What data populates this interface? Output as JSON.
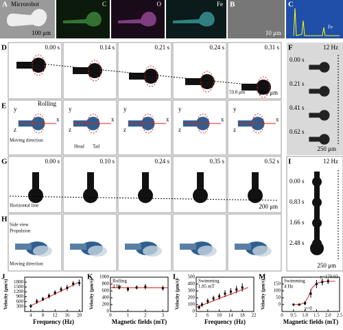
{
  "top": {
    "A": {
      "letter": "A",
      "caption": "Microrobot",
      "scale": "100 μm"
    },
    "maps": [
      "C",
      "O",
      "Fe"
    ],
    "B": {
      "letter": "B",
      "scale": "10 μm"
    },
    "C": {
      "letter": "C",
      "peak": "Fe"
    }
  },
  "D": {
    "letter": "D",
    "freq": "4 Hz",
    "times": [
      "0.00 s",
      "0.14 s",
      "0.21 s",
      "0.24 s",
      "0.31 s"
    ],
    "measure": "59.8 μm",
    "scale": "200 μm"
  },
  "E": {
    "letter": "E",
    "axes": [
      "x",
      "y",
      "z"
    ],
    "mode": "Rolling",
    "moving": "Moving direction",
    "head": "Head",
    "tail": "Tail"
  },
  "F": {
    "letter": "F",
    "freq": "12 Hz",
    "times": [
      "0.00 s",
      "0.21 s",
      "0.41 s",
      "0.62 s"
    ],
    "scale": "250 μm"
  },
  "G": {
    "letter": "G",
    "freq": "4 Hz",
    "times": [
      "0.00 s",
      "0.10 s",
      "0.24 s",
      "0.35 s",
      "0.52 s"
    ],
    "note": "Horizontal line",
    "scale": "200 μm"
  },
  "H": {
    "letter": "H",
    "view": "Side view",
    "mode": "Propulsion",
    "moving": "Moving direction"
  },
  "I": {
    "letter": "I",
    "freq": "12 Hz",
    "times": [
      "0.00 s",
      "0.83 s",
      "1.66 s",
      "2.48 s"
    ],
    "scale": "250 μm"
  },
  "chart_data": [
    {
      "type": "scatter",
      "letter": "J",
      "xlabel": "Frequency (Hz)",
      "ylabel": "Velocity (μm/s)",
      "x": [
        4,
        6,
        8,
        10,
        12,
        14,
        16,
        18,
        20
      ],
      "values": [
        330,
        620,
        760,
        950,
        1150,
        1350,
        1450,
        1700,
        1750
      ],
      "errors": [
        120,
        150,
        130,
        160,
        150,
        170,
        180,
        160,
        200
      ],
      "color": "#000000",
      "fit": {
        "x": [
          4,
          20
        ],
        "y": [
          350,
          1800
        ],
        "color": "#e02020"
      },
      "xlim": [
        2,
        21
      ],
      "xticks": [
        4,
        8,
        12,
        16,
        20
      ],
      "ylim": [
        0,
        2100
      ],
      "yticks": [
        300,
        600,
        900,
        1200,
        1500,
        1800
      ]
    },
    {
      "type": "scatter",
      "letter": "K",
      "xlabel": "Magnetic fields (mT)",
      "ylabel": "Velocity (μm/s)",
      "annotations": [
        "Rolling",
        "4 Hz"
      ],
      "x": [
        0.5,
        1,
        1.5,
        2,
        3
      ],
      "values": [
        700,
        650,
        700,
        720,
        680
      ],
      "errors": [
        60,
        70,
        60,
        80,
        70
      ],
      "color": "#000000",
      "fit": {
        "x": [
          0,
          3.3
        ],
        "y": [
          690,
          690
        ],
        "color": "#e02020"
      },
      "xlim": [
        0,
        3.3
      ],
      "xticks": [
        0,
        1,
        2,
        3
      ],
      "ylim": [
        0,
        1000
      ],
      "yticks": [
        0,
        200,
        400,
        600,
        800,
        1000
      ]
    },
    {
      "type": "scatter",
      "letter": "L",
      "xlabel": "Frequency (Hz)",
      "ylabel": "Velocity (μm/s)",
      "annotations": [
        "Swimming",
        "1.85 mT"
      ],
      "x": [
        3,
        4,
        6,
        8,
        10,
        12,
        14,
        16,
        18
      ],
      "values": [
        60,
        100,
        150,
        190,
        220,
        260,
        290,
        320,
        350
      ],
      "errors": [
        30,
        35,
        40,
        40,
        45,
        50,
        50,
        55,
        60
      ],
      "color": "#000000",
      "fit": {
        "x": [
          2,
          20
        ],
        "y": [
          60,
          350
        ],
        "color": "#e02020"
      },
      "xlim": [
        2,
        22
      ],
      "xticks": [
        2,
        6,
        10,
        14,
        18,
        22
      ],
      "ylim": [
        0,
        500
      ],
      "yticks": [
        0,
        100,
        200,
        300,
        400,
        500
      ]
    },
    {
      "type": "scatter",
      "letter": "M",
      "xlabel": "Magnetic fields (mT)",
      "ylabel": "Velocity (μm/s)",
      "annotations": [
        "Swimming",
        "4 Hz"
      ],
      "fit_labels": [
        "y=170.03",
        "y=0"
      ],
      "x": [
        0.5,
        0.75,
        1.0,
        1.25,
        1.5,
        1.75,
        2.0
      ],
      "values": [
        0,
        0,
        10,
        80,
        150,
        165,
        170
      ],
      "errors": [
        5,
        8,
        15,
        30,
        30,
        25,
        20
      ],
      "color": "#000000",
      "fit": {
        "x": [
          0.5,
          0.8,
          1.0,
          1.15,
          1.3,
          1.5,
          1.75,
          2.0,
          2.3
        ],
        "y": [
          0,
          2,
          15,
          60,
          120,
          155,
          167,
          170,
          170
        ],
        "color": "#e02020"
      },
      "xlim": [
        0,
        2.5
      ],
      "xticks": [
        0,
        0.5,
        {
          "value": 1,
          "label": "1.0"
        },
        1.5,
        {
          "value": 2,
          "label": "2.0"
        },
        2.5
      ],
      "ylim": [
        -50,
        200
      ],
      "yticks": [
        0,
        50,
        100,
        150
      ]
    }
  ]
}
